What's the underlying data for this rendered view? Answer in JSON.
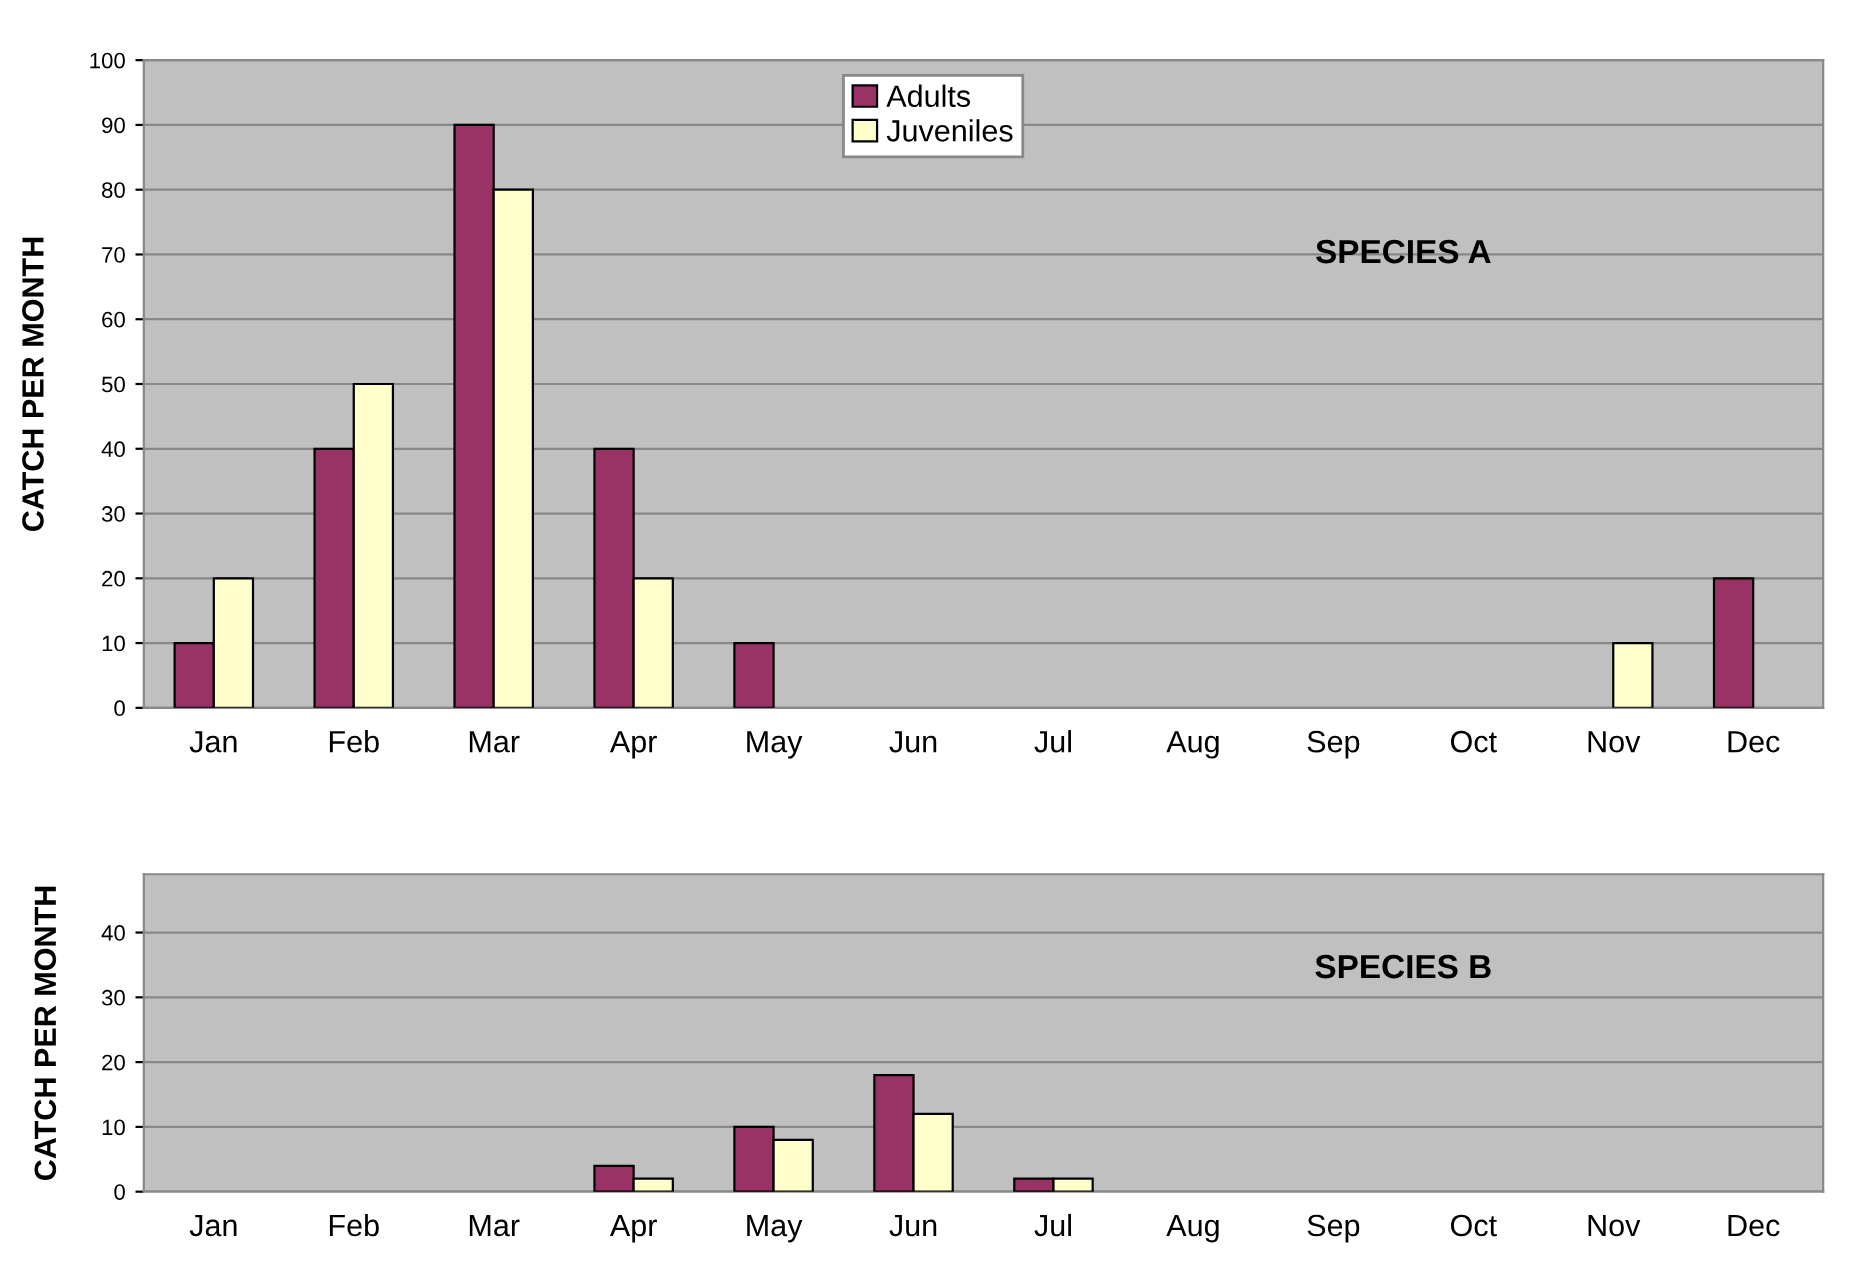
{
  "chart_data": [
    {
      "type": "bar",
      "ylabel": "CATCH PER MONTH",
      "annotations": [
        "SPECIES A"
      ],
      "categories": [
        "Jan",
        "Feb",
        "Mar",
        "Apr",
        "May",
        "Jun",
        "Jul",
        "Aug",
        "Sep",
        "Oct",
        "Nov",
        "Dec"
      ],
      "series": [
        {
          "name": "Adults",
          "color": "#993366",
          "values": [
            10,
            40,
            90,
            40,
            10,
            0,
            0,
            0,
            0,
            0,
            0,
            20
          ]
        },
        {
          "name": "Juveniles",
          "color": "#ffffcc",
          "values": [
            20,
            50,
            80,
            20,
            0,
            0,
            0,
            0,
            0,
            0,
            10,
            0
          ]
        }
      ],
      "ylim": [
        0,
        100
      ],
      "yticks": [
        0,
        10,
        20,
        30,
        40,
        50,
        60,
        70,
        80,
        90,
        100
      ],
      "grid": "y",
      "legend": "top"
    },
    {
      "type": "bar",
      "ylabel": "CATCH PER MONTH",
      "annotations": [
        "SPECIES B"
      ],
      "categories": [
        "Jan",
        "Feb",
        "Mar",
        "Apr",
        "May",
        "Jun",
        "Jul",
        "Aug",
        "Sep",
        "Oct",
        "Nov",
        "Dec"
      ],
      "series": [
        {
          "color": "#993366",
          "values": [
            0,
            0,
            0,
            4,
            10,
            18,
            2,
            0,
            0,
            0,
            0,
            0
          ]
        },
        {
          "color": "#ffffcc",
          "values": [
            0,
            0,
            0,
            2,
            8,
            12,
            2,
            0,
            0,
            0,
            0,
            0
          ]
        }
      ],
      "ylim": [
        0,
        49
      ],
      "yticks": [
        0,
        10,
        20,
        30,
        40
      ],
      "grid": "y"
    }
  ]
}
